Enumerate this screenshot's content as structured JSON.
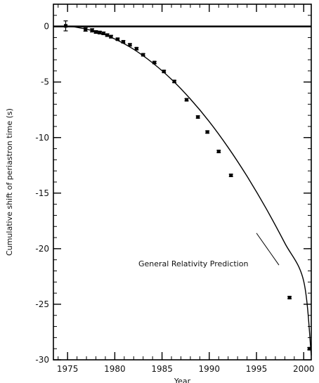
{
  "chart_data": {
    "type": "scatter",
    "title": "",
    "xlabel": "Year",
    "ylabel": "Cumulative shift of periastron time (s)",
    "xlim": [
      1973.5,
      2000.8
    ],
    "ylim": [
      -30,
      2
    ],
    "grid": false,
    "x_ticks": [
      1975,
      1980,
      1985,
      1990,
      1995,
      2000
    ],
    "x_tick_labels": [
      "1975",
      "1980",
      "1985",
      "1990",
      "1995",
      "2000"
    ],
    "y_ticks": [
      0,
      -5,
      -10,
      -15,
      -20,
      -25,
      -30
    ],
    "y_tick_labels": [
      "0",
      "-5",
      "-10",
      "-15",
      "-20",
      "-25",
      "-30"
    ],
    "reference_line": {
      "y": 0
    },
    "series": [
      {
        "type": "scatter",
        "x": [
          1974.8,
          1976.9,
          1977.6,
          1978.0,
          1978.4,
          1978.8,
          1979.2,
          1979.6,
          1980.3,
          1980.9,
          1981.6,
          1982.3,
          1983.0,
          1984.2,
          1985.2,
          1986.3,
          1987.6,
          1988.8,
          1989.8,
          1991.0,
          1992.3,
          1998.5,
          2000.6
        ],
        "y": [
          0.05,
          -0.28,
          -0.35,
          -0.5,
          -0.55,
          -0.62,
          -0.78,
          -0.92,
          -1.15,
          -1.38,
          -1.65,
          -2.0,
          -2.55,
          -3.25,
          -4.05,
          -4.95,
          -6.6,
          -8.15,
          -9.5,
          -11.25,
          -13.4,
          -24.4,
          -29.0
        ],
        "yerr": [
          0.45,
          0.15,
          0.15,
          0.12,
          0.12,
          0.12,
          0.12,
          0.12,
          0.1,
          0.1,
          0.1,
          0.1,
          0.1,
          0.1,
          0.1,
          0.1,
          0.1,
          0.1,
          0.1,
          0.1,
          0.1,
          0.1,
          0.1
        ]
      },
      {
        "type": "line",
        "x": [
          1974.8,
          1976,
          1978,
          1980,
          1982,
          1984,
          1986,
          1988,
          1990,
          1992,
          1994,
          1996,
          1998,
          2000,
          2000.8
        ],
        "y": [
          0,
          -0.08,
          -0.47,
          -1.13,
          -2.06,
          -3.28,
          -4.76,
          -6.53,
          -8.57,
          -10.89,
          -13.48,
          -16.35,
          -19.5,
          -22.92,
          -29.6
        ]
      }
    ],
    "annotations": [
      {
        "text": "General Relativity Prediction",
        "x": 1982.5,
        "y": -21.6,
        "arrow_to": [
          1995.0,
          -18.6
        ]
      }
    ]
  }
}
